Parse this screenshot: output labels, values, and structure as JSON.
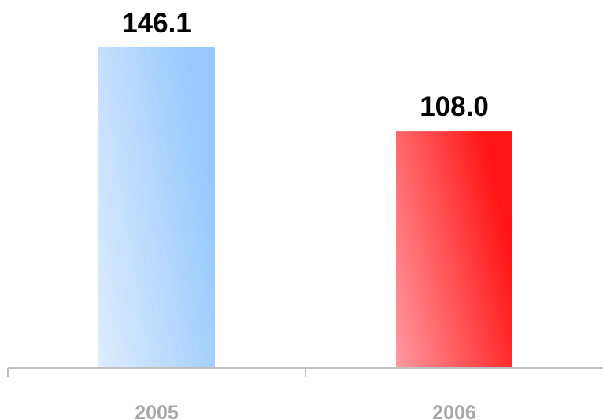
{
  "chart_data": {
    "type": "bar",
    "categories": [
      "2005",
      "2006"
    ],
    "values": [
      146.1,
      108.0
    ],
    "value_labels": [
      "146.1",
      "108.0"
    ],
    "title": "",
    "xlabel": "",
    "ylabel": "",
    "ylim": [
      0,
      146.1
    ],
    "grid": false,
    "legend": "none",
    "colors": {
      "bars": [
        {
          "light": "#deecfd",
          "dark": "#99caff"
        },
        {
          "light": "#ff9aa0",
          "dark": "#ff1515"
        }
      ],
      "axis": "#bfbfbf",
      "tick_label": "#a6a6a6",
      "value_label": "#000000"
    }
  }
}
